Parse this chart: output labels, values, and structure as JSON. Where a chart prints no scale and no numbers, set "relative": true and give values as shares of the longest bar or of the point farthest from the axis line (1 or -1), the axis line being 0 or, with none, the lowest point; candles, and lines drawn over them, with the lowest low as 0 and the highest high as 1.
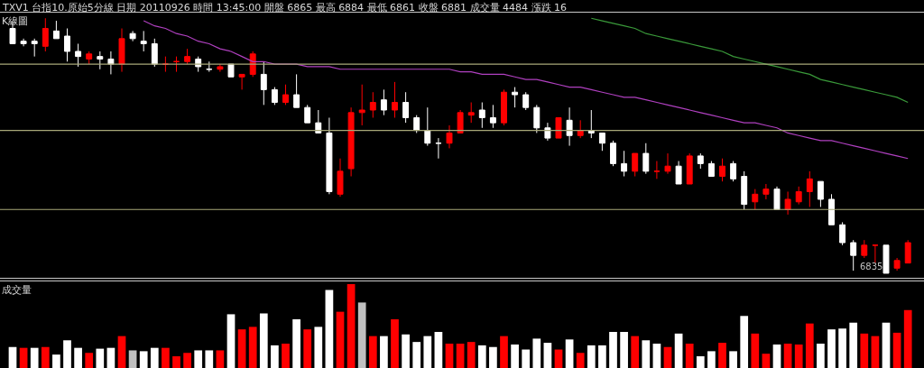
{
  "chart_data": [
    {
      "type": "candlestick",
      "title": "TXV1 台指10.原始5分線 日期 20110926 時間 13:45:00 開盤 6865 最高 6884 最低 6861 收盤 6881 成交量 4484 漲跌 16",
      "subtitle": "K線圖",
      "relative": true,
      "categories": [
        null,
        null,
        null,
        null,
        null,
        null,
        null,
        null,
        null,
        null,
        null,
        null,
        null,
        null,
        null,
        null,
        null,
        null,
        null,
        null,
        null,
        null,
        null,
        null,
        null,
        null,
        null,
        null,
        null,
        null,
        null,
        null,
        null,
        null,
        null,
        null,
        null,
        null,
        null,
        null,
        null,
        null,
        null,
        null,
        null,
        null,
        null,
        null,
        null,
        null,
        null,
        null,
        null,
        null,
        null,
        null,
        null,
        null,
        null,
        null,
        null,
        null,
        null,
        null,
        null,
        null,
        null,
        null,
        null,
        null,
        null,
        null,
        null,
        null,
        null,
        null,
        null,
        null,
        null,
        null,
        null,
        null,
        null
      ],
      "ohlc": [
        [
          0.96,
          0.99,
          0.9,
          0.9
        ],
        [
          0.91,
          0.92,
          0.89,
          0.9
        ],
        [
          0.91,
          0.92,
          0.85,
          0.9
        ],
        [
          0.89,
          1,
          0.87,
          0.96
        ],
        [
          0.95,
          0.99,
          0.92,
          0.92
        ],
        [
          0.93,
          0.96,
          0.83,
          0.87
        ],
        [
          0.87,
          0.9,
          0.81,
          0.85
        ],
        [
          0.84,
          0.87,
          0.82,
          0.86
        ],
        [
          0.85,
          0.87,
          0.8,
          0.84
        ],
        [
          0.84,
          0.87,
          0.78,
          0.82
        ],
        [
          0.82,
          0.96,
          0.79,
          0.92
        ],
        [
          0.94,
          0.95,
          0.91,
          0.92
        ],
        [
          0.91,
          0.95,
          0.87,
          0.9
        ],
        [
          0.9,
          0.92,
          0.81,
          0.82
        ],
        [
          0.82,
          0.85,
          0.79,
          0.82
        ],
        [
          0.83,
          0.85,
          0.79,
          0.83
        ],
        [
          0.83,
          0.88,
          0.82,
          0.85
        ],
        [
          0.84,
          0.85,
          0.79,
          0.81
        ],
        [
          0.8,
          0.83,
          0.79,
          0.8
        ],
        [
          0.8,
          0.82,
          0.79,
          0.81
        ],
        [
          0.82,
          0.82,
          0.77,
          0.77
        ],
        [
          0.77,
          0.78,
          0.72,
          0.78
        ],
        [
          0.78,
          0.87,
          0.77,
          0.86
        ],
        [
          0.78,
          0.83,
          0.66,
          0.72
        ],
        [
          0.72,
          0.73,
          0.66,
          0.67
        ],
        [
          0.67,
          0.74,
          0.66,
          0.7
        ],
        [
          0.7,
          0.78,
          0.65,
          0.65
        ],
        [
          0.65,
          0.66,
          0.59,
          0.59
        ],
        [
          0.59,
          0.64,
          0.55,
          0.55
        ],
        [
          0.55,
          0.61,
          0.31,
          0.32
        ],
        [
          0.31,
          0.45,
          0.3,
          0.4
        ],
        [
          0.41,
          0.65,
          0.38,
          0.63
        ],
        [
          0.63,
          0.74,
          0.58,
          0.64
        ],
        [
          0.64,
          0.71,
          0.61,
          0.67
        ],
        [
          0.68,
          0.72,
          0.62,
          0.64
        ],
        [
          0.64,
          0.75,
          0.61,
          0.67
        ],
        [
          0.67,
          0.71,
          0.59,
          0.61
        ],
        [
          0.61,
          0.62,
          0.55,
          0.56
        ],
        [
          0.56,
          0.65,
          0.5,
          0.51
        ],
        [
          0.51,
          0.53,
          0.45,
          0.51
        ],
        [
          0.51,
          0.58,
          0.49,
          0.55
        ],
        [
          0.55,
          0.64,
          0.55,
          0.63
        ],
        [
          0.62,
          0.67,
          0.59,
          0.63
        ],
        [
          0.64,
          0.67,
          0.57,
          0.61
        ],
        [
          0.61,
          0.66,
          0.57,
          0.59
        ],
        [
          0.59,
          0.72,
          0.58,
          0.71
        ],
        [
          0.71,
          0.73,
          0.65,
          0.7
        ],
        [
          0.7,
          0.71,
          0.64,
          0.65
        ],
        [
          0.65,
          0.66,
          0.55,
          0.57
        ],
        [
          0.57,
          0.59,
          0.52,
          0.53
        ],
        [
          0.53,
          0.61,
          0.53,
          0.61
        ],
        [
          0.6,
          0.65,
          0.5,
          0.54
        ],
        [
          0.54,
          0.6,
          0.53,
          0.56
        ],
        [
          0.56,
          0.64,
          0.53,
          0.55
        ],
        [
          0.55,
          0.55,
          0.48,
          0.51
        ],
        [
          0.51,
          0.52,
          0.42,
          0.43
        ],
        [
          0.43,
          0.48,
          0.38,
          0.4
        ],
        [
          0.4,
          0.47,
          0.38,
          0.47
        ],
        [
          0.47,
          0.51,
          0.39,
          0.4
        ],
        [
          0.4,
          0.44,
          0.37,
          0.4
        ],
        [
          0.4,
          0.47,
          0.39,
          0.42
        ],
        [
          0.42,
          0.44,
          0.35,
          0.35
        ],
        [
          0.35,
          0.47,
          0.35,
          0.46
        ],
        [
          0.46,
          0.47,
          0.41,
          0.43
        ],
        [
          0.43,
          0.44,
          0.38,
          0.38
        ],
        [
          0.38,
          0.45,
          0.36,
          0.42
        ],
        [
          0.43,
          0.44,
          0.36,
          0.37
        ],
        [
          0.38,
          0.4,
          0.25,
          0.27
        ],
        [
          0.28,
          0.33,
          0.25,
          0.31
        ],
        [
          0.31,
          0.35,
          0.29,
          0.33
        ],
        [
          0.33,
          0.34,
          0.25,
          0.25
        ],
        [
          0.25,
          0.32,
          0.23,
          0.29
        ],
        [
          0.28,
          0.34,
          0.27,
          0.32
        ],
        [
          0.32,
          0.4,
          0.26,
          0.37
        ],
        [
          0.36,
          0.36,
          0.26,
          0.29
        ],
        [
          0.29,
          0.31,
          0.19,
          0.19
        ],
        [
          0.19,
          0.2,
          0.11,
          0.12
        ],
        [
          0.12,
          0.13,
          0.01,
          0.07
        ],
        [
          0.07,
          0.13,
          0.06,
          0.11
        ],
        [
          0.11,
          0.11,
          0.04,
          0.11
        ],
        [
          0.11,
          0.11,
          0,
          0.0
        ],
        [
          0.02,
          0.06,
          0.01,
          0.05
        ],
        [
          0.04,
          0.13,
          0.04,
          0.12
        ]
      ],
      "colors": [
        "#ffffff",
        "#ffffff",
        "#ffffff",
        "#ff0000",
        "#ffffff",
        "#ffffff",
        "#ffffff",
        "#ff0000",
        "#ffffff",
        "#ffffff",
        "#ff0000",
        "#ffffff",
        "#ffffff",
        "#ffffff",
        "#ff0000",
        "#ff0000",
        "#ff0000",
        "#ffffff",
        "#ffffff",
        "#ff0000",
        "#ffffff",
        "#ff0000",
        "#ff0000",
        "#ffffff",
        "#ffffff",
        "#ff0000",
        "#ffffff",
        "#ffffff",
        "#ffffff",
        "#ffffff",
        "#ff0000",
        "#ff0000",
        "#ff0000",
        "#ff0000",
        "#ffffff",
        "#ff0000",
        "#ffffff",
        "#ffffff",
        "#ffffff",
        "#ffffff",
        "#ff0000",
        "#ff0000",
        "#ff0000",
        "#ffffff",
        "#ffffff",
        "#ff0000",
        "#ffffff",
        "#ffffff",
        "#ffffff",
        "#ffffff",
        "#ff0000",
        "#ffffff",
        "#ff0000",
        "#ffffff",
        "#ffffff",
        "#ffffff",
        "#ffffff",
        "#ff0000",
        "#ffffff",
        "#ff0000",
        "#ff0000",
        "#ffffff",
        "#ff0000",
        "#ffffff",
        "#ffffff",
        "#ff0000",
        "#ffffff",
        "#ffffff",
        "#ff0000",
        "#ff0000",
        "#ffffff",
        "#ff0000",
        "#ff0000",
        "#ff0000",
        "#ffffff",
        "#ffffff",
        "#ffffff",
        "#ffffff",
        "#ff0000",
        "#ff0000",
        "#ffffff",
        "#ff0000",
        "#ff0000"
      ],
      "series": [
        {
          "type": "line",
          "color": "#b040c0",
          "values": [
            null,
            null,
            null,
            null,
            null,
            null,
            null,
            null,
            null,
            null,
            null,
            null,
            0.99,
            0.97,
            0.96,
            0.94,
            0.93,
            0.91,
            0.9,
            0.88,
            0.87,
            0.85,
            0.83,
            0.83,
            0.82,
            0.82,
            0.82,
            0.81,
            0.81,
            0.81,
            0.8,
            0.8,
            0.8,
            0.8,
            0.8,
            0.8,
            0.8,
            0.8,
            0.8,
            0.8,
            0.8,
            0.79,
            0.79,
            0.78,
            0.78,
            0.78,
            0.77,
            0.76,
            0.76,
            0.75,
            0.74,
            0.73,
            0.73,
            0.72,
            0.71,
            0.7,
            0.69,
            0.69,
            0.68,
            0.67,
            0.66,
            0.65,
            0.64,
            0.63,
            0.62,
            0.61,
            0.6,
            0.59,
            0.59,
            0.58,
            0.57,
            0.55,
            0.54,
            0.53,
            0.52,
            0.52,
            0.51,
            0.5,
            0.49,
            0.48,
            0.47,
            0.46,
            0.45
          ]
        },
        {
          "type": "line",
          "color": "#3a9a3a",
          "values": [
            null,
            null,
            null,
            null,
            null,
            null,
            null,
            null,
            null,
            null,
            null,
            null,
            null,
            null,
            null,
            null,
            null,
            null,
            null,
            null,
            null,
            null,
            null,
            null,
            null,
            null,
            null,
            null,
            null,
            null,
            null,
            null,
            null,
            null,
            null,
            null,
            null,
            null,
            null,
            null,
            null,
            null,
            null,
            null,
            null,
            null,
            null,
            null,
            null,
            null,
            null,
            null,
            null,
            1.0,
            0.99,
            0.98,
            0.97,
            0.96,
            0.94,
            0.93,
            0.92,
            0.91,
            0.9,
            0.89,
            0.88,
            0.87,
            0.85,
            0.84,
            0.83,
            0.82,
            0.81,
            0.8,
            0.79,
            0.78,
            0.76,
            0.75,
            0.74,
            0.73,
            0.72,
            0.71,
            0.7,
            0.69,
            0.67
          ]
        }
      ],
      "ref_lines": [
        {
          "axis": "y",
          "value": 0.82,
          "color": "#a8a878"
        },
        {
          "axis": "y",
          "value": 0.56,
          "color": "#a8a878"
        },
        {
          "axis": "y",
          "value": 0.25,
          "color": "#a8a878"
        }
      ],
      "annotations": [
        "6835"
      ]
    },
    {
      "type": "bar",
      "title": "成交量",
      "relative": true,
      "categories": [
        null,
        null,
        null,
        null,
        null,
        null,
        null,
        null,
        null,
        null,
        null,
        null,
        null,
        null,
        null,
        null,
        null,
        null,
        null,
        null,
        null,
        null,
        null,
        null,
        null,
        null,
        null,
        null,
        null,
        null,
        null,
        null,
        null,
        null,
        null,
        null,
        null,
        null,
        null,
        null,
        null,
        null,
        null,
        null,
        null,
        null,
        null,
        null,
        null,
        null,
        null,
        null,
        null,
        null,
        null,
        null,
        null,
        null,
        null,
        null,
        null,
        null,
        null,
        null,
        null,
        null,
        null,
        null,
        null,
        null,
        null,
        null,
        null,
        null,
        null,
        null,
        null,
        null,
        null,
        null,
        null,
        null,
        null
      ],
      "values": [
        0.25,
        0.24,
        0.24,
        0.25,
        0.16,
        0.33,
        0.24,
        0.18,
        0.23,
        0.24,
        0.38,
        0.21,
        0.2,
        0.24,
        0.24,
        0.14,
        0.18,
        0.21,
        0.21,
        0.21,
        0.64,
        0.46,
        0.49,
        0.65,
        0.27,
        0.29,
        0.58,
        0.46,
        0.49,
        0.93,
        0.67,
        1,
        0.78,
        0.38,
        0.38,
        0.58,
        0.4,
        0.31,
        0.38,
        0.43,
        0.29,
        0.29,
        0.31,
        0.27,
        0.25,
        0.38,
        0.28,
        0.22,
        0.35,
        0.3,
        0.22,
        0.34,
        0.18,
        0.27,
        0.27,
        0.43,
        0.43,
        0.38,
        0.33,
        0.29,
        0.25,
        0.41,
        0.29,
        0.14,
        0.2,
        0.3,
        0.2,
        0.62,
        0.41,
        0.17,
        0.28,
        0.29,
        0.28,
        0.53,
        0.29,
        0.46,
        0.47,
        0.54,
        0.41,
        0.38,
        0.54,
        0.42,
        0.69
      ],
      "colors": [
        "#ffffff",
        "#ff0000",
        "#ffffff",
        "#ff0000",
        "#ffffff",
        "#ffffff",
        "#ffffff",
        "#ff0000",
        "#ffffff",
        "#ffffff",
        "#ff0000",
        "#c0c0c0",
        "#ffffff",
        "#ffffff",
        "#ff0000",
        "#ff0000",
        "#ff0000",
        "#ffffff",
        "#ffffff",
        "#ff0000",
        "#ffffff",
        "#ff0000",
        "#ff0000",
        "#ffffff",
        "#ffffff",
        "#ff0000",
        "#ffffff",
        "#ff0000",
        "#ffffff",
        "#ffffff",
        "#ff0000",
        "#ff0000",
        "#c0c0c0",
        "#ff0000",
        "#ffffff",
        "#ff0000",
        "#ffffff",
        "#ffffff",
        "#ffffff",
        "#ffffff",
        "#ff0000",
        "#ff0000",
        "#ff0000",
        "#ffffff",
        "#ffffff",
        "#ff0000",
        "#ffffff",
        "#ffffff",
        "#ffffff",
        "#ffffff",
        "#ff0000",
        "#ffffff",
        "#ff0000",
        "#ffffff",
        "#ffffff",
        "#ffffff",
        "#ffffff",
        "#ff0000",
        "#ffffff",
        "#ffffff",
        "#ff0000",
        "#ffffff",
        "#ff0000",
        "#ffffff",
        "#ffffff",
        "#ff0000",
        "#ffffff",
        "#ffffff",
        "#ff0000",
        "#ff0000",
        "#ffffff",
        "#ff0000",
        "#ff0000",
        "#ff0000",
        "#ffffff",
        "#ffffff",
        "#ffffff",
        "#ffffff",
        "#ff0000",
        "#ff0000",
        "#ffffff",
        "#ff0000",
        "#ff0000"
      ]
    }
  ]
}
